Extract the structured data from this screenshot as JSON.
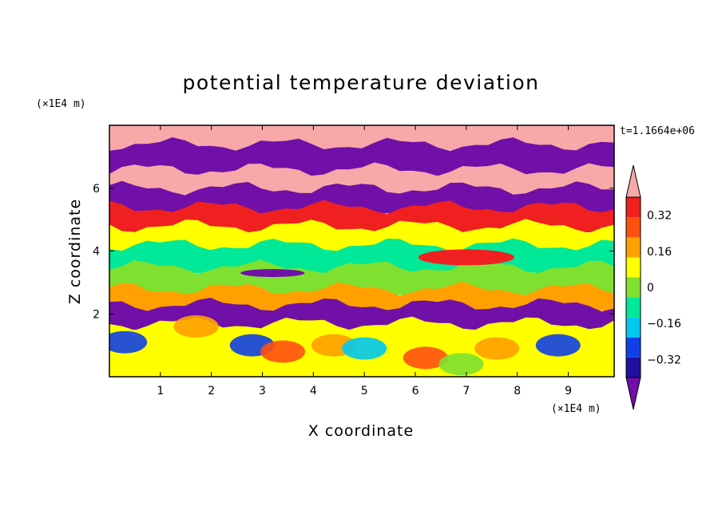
{
  "chart_data": {
    "type": "heatmap",
    "title": "potential temperature deviation",
    "xlabel": "X coordinate",
    "ylabel": "Z coordinate",
    "x_unit": "(×1E4 m)",
    "y_unit": "(×1E4 m)",
    "time_label": "t=1.1664e+06",
    "xlim": [
      0,
      9.9
    ],
    "ylim": [
      0,
      8.0
    ],
    "x_ticks": [
      1,
      2,
      3,
      4,
      5,
      6,
      7,
      8,
      9
    ],
    "y_ticks": [
      2,
      4,
      6
    ],
    "colorbar": {
      "levels": [
        -0.4,
        -0.32,
        -0.24,
        -0.16,
        -0.08,
        0,
        0.08,
        0.16,
        0.24,
        0.32,
        0.4
      ],
      "labels": [
        "0.32",
        "0.16",
        "0",
        "−0.16",
        "−0.32"
      ],
      "label_values": [
        0.32,
        0.16,
        0,
        -0.16,
        -0.32
      ],
      "extend": "both",
      "colors": [
        "#7010a8",
        "#2010a0",
        "#1040e8",
        "#00c8f0",
        "#00e898",
        "#80e030",
        "#ffff00",
        "#ffa000",
        "#ff5010",
        "#f02020",
        "#f8a8a8"
      ]
    },
    "bands": [
      {
        "z_top": 8.0,
        "z_bottom": 7.4,
        "value": 0.45
      },
      {
        "z_top": 7.4,
        "z_bottom": 6.6,
        "value": -0.45
      },
      {
        "z_top": 6.6,
        "z_bottom": 6.0,
        "value": 0.45
      },
      {
        "z_top": 6.0,
        "z_bottom": 5.4,
        "value": -0.45
      },
      {
        "z_top": 5.4,
        "z_bottom": 4.8,
        "value": 0.36
      },
      {
        "z_top": 4.8,
        "z_bottom": 4.2,
        "value": 0.12
      },
      {
        "z_top": 4.2,
        "z_bottom": 3.5,
        "value": -0.08
      },
      {
        "z_top": 3.5,
        "z_bottom": 2.8,
        "value": 0.04
      },
      {
        "z_top": 2.8,
        "z_bottom": 2.3,
        "value": 0.2
      },
      {
        "z_top": 2.3,
        "z_bottom": 1.7,
        "value": -0.4
      },
      {
        "z_top": 1.7,
        "z_bottom": 0.0,
        "value": 0.1
      }
    ]
  }
}
